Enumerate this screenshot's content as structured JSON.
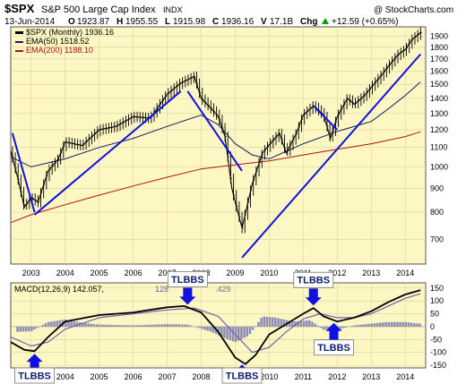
{
  "header": {
    "symbol": "$SPX",
    "name": "S&P 500 Large Cap Index",
    "exchange": "INDX",
    "watermark": "@ StockCharts.com"
  },
  "quote": {
    "date": "13-Jun-2014",
    "o_label": "O",
    "o_value": "1923.87",
    "h_label": "H",
    "h_value": "1955.55",
    "l_label": "L",
    "l_value": "1915.98",
    "c_label": "C",
    "c_value": "1936.16",
    "v_label": "V",
    "v_value": "17.1B",
    "chg_label": "Chg",
    "chg_value": "+12.59 (+0.65%)",
    "chg_arrow": "up-arrow-icon"
  },
  "legend": {
    "price": "$SPX (Monthly) 1936.16",
    "ema50": "EMA(50) 1518.52",
    "ema200": "EMA(200) 1188.10"
  },
  "macd_legend": {
    "label": "MACD(12,26,9) 142.057,",
    "signal_partial": "128",
    "hist_partial": ".429"
  },
  "colors": {
    "panel_bg": "#fdf7c3",
    "price": "#000000",
    "ema50": "#1a1a66",
    "ema200": "#b01010",
    "trendline": "#1010e0",
    "macd_line": "#000000",
    "signal_line": "#7a5ab0",
    "histogram": "#8c8cb4",
    "annotation_text": "#0b1f6e",
    "callout_arrow": "#1010e0"
  },
  "annotations": [
    {
      "text": "TLBBS",
      "pos": "below",
      "t": 2003.1
    },
    {
      "text": "TLBBS",
      "pos": "above",
      "t": 2007.6
    },
    {
      "text": "TLBBS",
      "pos": "below",
      "t": 2009.2
    },
    {
      "text": "TLBBS",
      "pos": "above",
      "t": 2011.3
    },
    {
      "text": "TLBBS",
      "pos": "below",
      "t": 2011.9
    }
  ],
  "chart_data": [
    {
      "type": "line",
      "title": "$SPX S&P 500 Large Cap Index INDX",
      "scale": "log",
      "ylim": [
        620,
        1990
      ],
      "xlim": [
        2002.4,
        2014.6
      ],
      "x_tick_labels": [
        "2003",
        "2004",
        "2005",
        "2006",
        "2007",
        "2008",
        "2009",
        "2010",
        "2011",
        "2012",
        "2013",
        "2014"
      ],
      "y_tick_labels": [
        "700",
        "800",
        "900",
        "1000",
        "1100",
        "1200",
        "1300",
        "1400",
        "1500",
        "1600",
        "1700",
        "1800",
        "1900"
      ],
      "grid": true,
      "legend_placement": "top-left",
      "series": [
        {
          "name": "$SPX (Monthly)",
          "x": [
            2002.4,
            2002.6,
            2002.8,
            2003.0,
            2003.2,
            2003.5,
            2003.8,
            2004.0,
            2004.5,
            2005.0,
            2005.5,
            2006.0,
            2006.5,
            2007.0,
            2007.4,
            2007.8,
            2008.0,
            2008.3,
            2008.5,
            2008.7,
            2008.9,
            2009.0,
            2009.2,
            2009.5,
            2009.8,
            2010.0,
            2010.3,
            2010.5,
            2010.8,
            2011.0,
            2011.3,
            2011.6,
            2011.8,
            2012.0,
            2012.3,
            2012.5,
            2012.8,
            2013.0,
            2013.3,
            2013.5,
            2013.8,
            2014.0,
            2014.2,
            2014.45
          ],
          "y": [
            1080,
            950,
            820,
            860,
            840,
            980,
            1040,
            1130,
            1110,
            1200,
            1220,
            1280,
            1270,
            1430,
            1510,
            1560,
            1400,
            1330,
            1280,
            1160,
            900,
            840,
            740,
            920,
            1070,
            1115,
            1180,
            1070,
            1180,
            1290,
            1350,
            1290,
            1150,
            1280,
            1400,
            1360,
            1420,
            1480,
            1570,
            1640,
            1740,
            1780,
            1870,
            1936
          ]
        },
        {
          "name": "EMA(50)",
          "x": [
            2002.4,
            2003.0,
            2004.0,
            2005.0,
            2006.0,
            2007.0,
            2008.0,
            2008.5,
            2009.0,
            2009.5,
            2010.0,
            2011.0,
            2012.0,
            2013.0,
            2013.5,
            2014.0,
            2014.45
          ],
          "y": [
            1050,
            1000,
            1040,
            1100,
            1150,
            1220,
            1290,
            1230,
            1120,
            1060,
            1040,
            1120,
            1190,
            1250,
            1330,
            1420,
            1518
          ]
        },
        {
          "name": "EMA(200)",
          "x": [
            2002.4,
            2003.0,
            2004.0,
            2005.0,
            2006.0,
            2007.0,
            2008.0,
            2009.0,
            2010.0,
            2011.0,
            2012.0,
            2013.0,
            2014.0,
            2014.45
          ],
          "y": [
            760,
            790,
            830,
            870,
            910,
            950,
            990,
            1010,
            1030,
            1060,
            1090,
            1120,
            1160,
            1188
          ]
        }
      ],
      "trendlines": [
        {
          "x": [
            2002.45,
            2003.1
          ],
          "y": [
            1180,
            800
          ]
        },
        {
          "x": [
            2003.1,
            2007.4
          ],
          "y": [
            790,
            1450
          ]
        },
        {
          "x": [
            2007.6,
            2009.2
          ],
          "y": [
            1450,
            980
          ]
        },
        {
          "x": [
            2009.2,
            2014.45
          ],
          "y": [
            640,
            1740
          ]
        },
        {
          "x": [
            2011.3,
            2012.0
          ],
          "y": [
            1350,
            1200
          ]
        }
      ]
    },
    {
      "type": "line",
      "title": "MACD(12,26,9)",
      "ylim": [
        -160,
        170
      ],
      "xlim": [
        2002.4,
        2014.6
      ],
      "x_tick_labels": [
        "2003",
        "2004",
        "2005",
        "2006",
        "2007",
        "2008",
        "2009",
        "2010",
        "2011",
        "2012",
        "2013",
        "2014"
      ],
      "y_tick_labels": [
        "150",
        "100",
        "50",
        "0",
        "-50",
        "-100",
        "-150"
      ],
      "grid": true,
      "series": [
        {
          "name": "MACD",
          "x": [
            2002.4,
            2002.8,
            2003.1,
            2003.5,
            2004.0,
            2005.0,
            2006.0,
            2006.5,
            2007.0,
            2007.5,
            2008.0,
            2008.5,
            2009.0,
            2009.3,
            2009.6,
            2010.0,
            2010.5,
            2011.0,
            2011.3,
            2011.6,
            2012.0,
            2012.5,
            2013.0,
            2013.5,
            2014.0,
            2014.45
          ],
          "y": [
            -60,
            -90,
            -95,
            -40,
            20,
            45,
            55,
            65,
            75,
            80,
            55,
            -20,
            -120,
            -145,
            -110,
            -30,
            10,
            50,
            72,
            40,
            20,
            35,
            60,
            95,
            125,
            142
          ]
        },
        {
          "name": "Signal",
          "x": [
            2002.4,
            2003.0,
            2003.5,
            2004.0,
            2005.0,
            2006.0,
            2007.0,
            2007.8,
            2008.5,
            2009.0,
            2009.5,
            2010.0,
            2010.5,
            2011.0,
            2011.5,
            2012.0,
            2012.5,
            2013.0,
            2013.5,
            2014.0,
            2014.45
          ],
          "y": [
            -40,
            -75,
            -60,
            -10,
            35,
            50,
            65,
            72,
            40,
            -30,
            -100,
            -80,
            -20,
            30,
            50,
            35,
            35,
            50,
            80,
            110,
            128
          ]
        },
        {
          "name": "Histogram",
          "x": [
            2002.6,
            2003.0,
            2003.5,
            2004.0,
            2004.5,
            2005.0,
            2006.0,
            2007.0,
            2007.6,
            2008.3,
            2008.7,
            2009.0,
            2009.4,
            2009.8,
            2010.2,
            2010.7,
            2011.2,
            2011.6,
            2012.0,
            2012.5,
            2013.0,
            2013.5,
            2014.0,
            2014.4
          ],
          "y": [
            -20,
            -18,
            18,
            28,
            15,
            8,
            5,
            10,
            8,
            -20,
            -45,
            -60,
            -35,
            40,
            35,
            20,
            25,
            -12,
            -12,
            5,
            12,
            18,
            18,
            12
          ]
        }
      ]
    }
  ]
}
